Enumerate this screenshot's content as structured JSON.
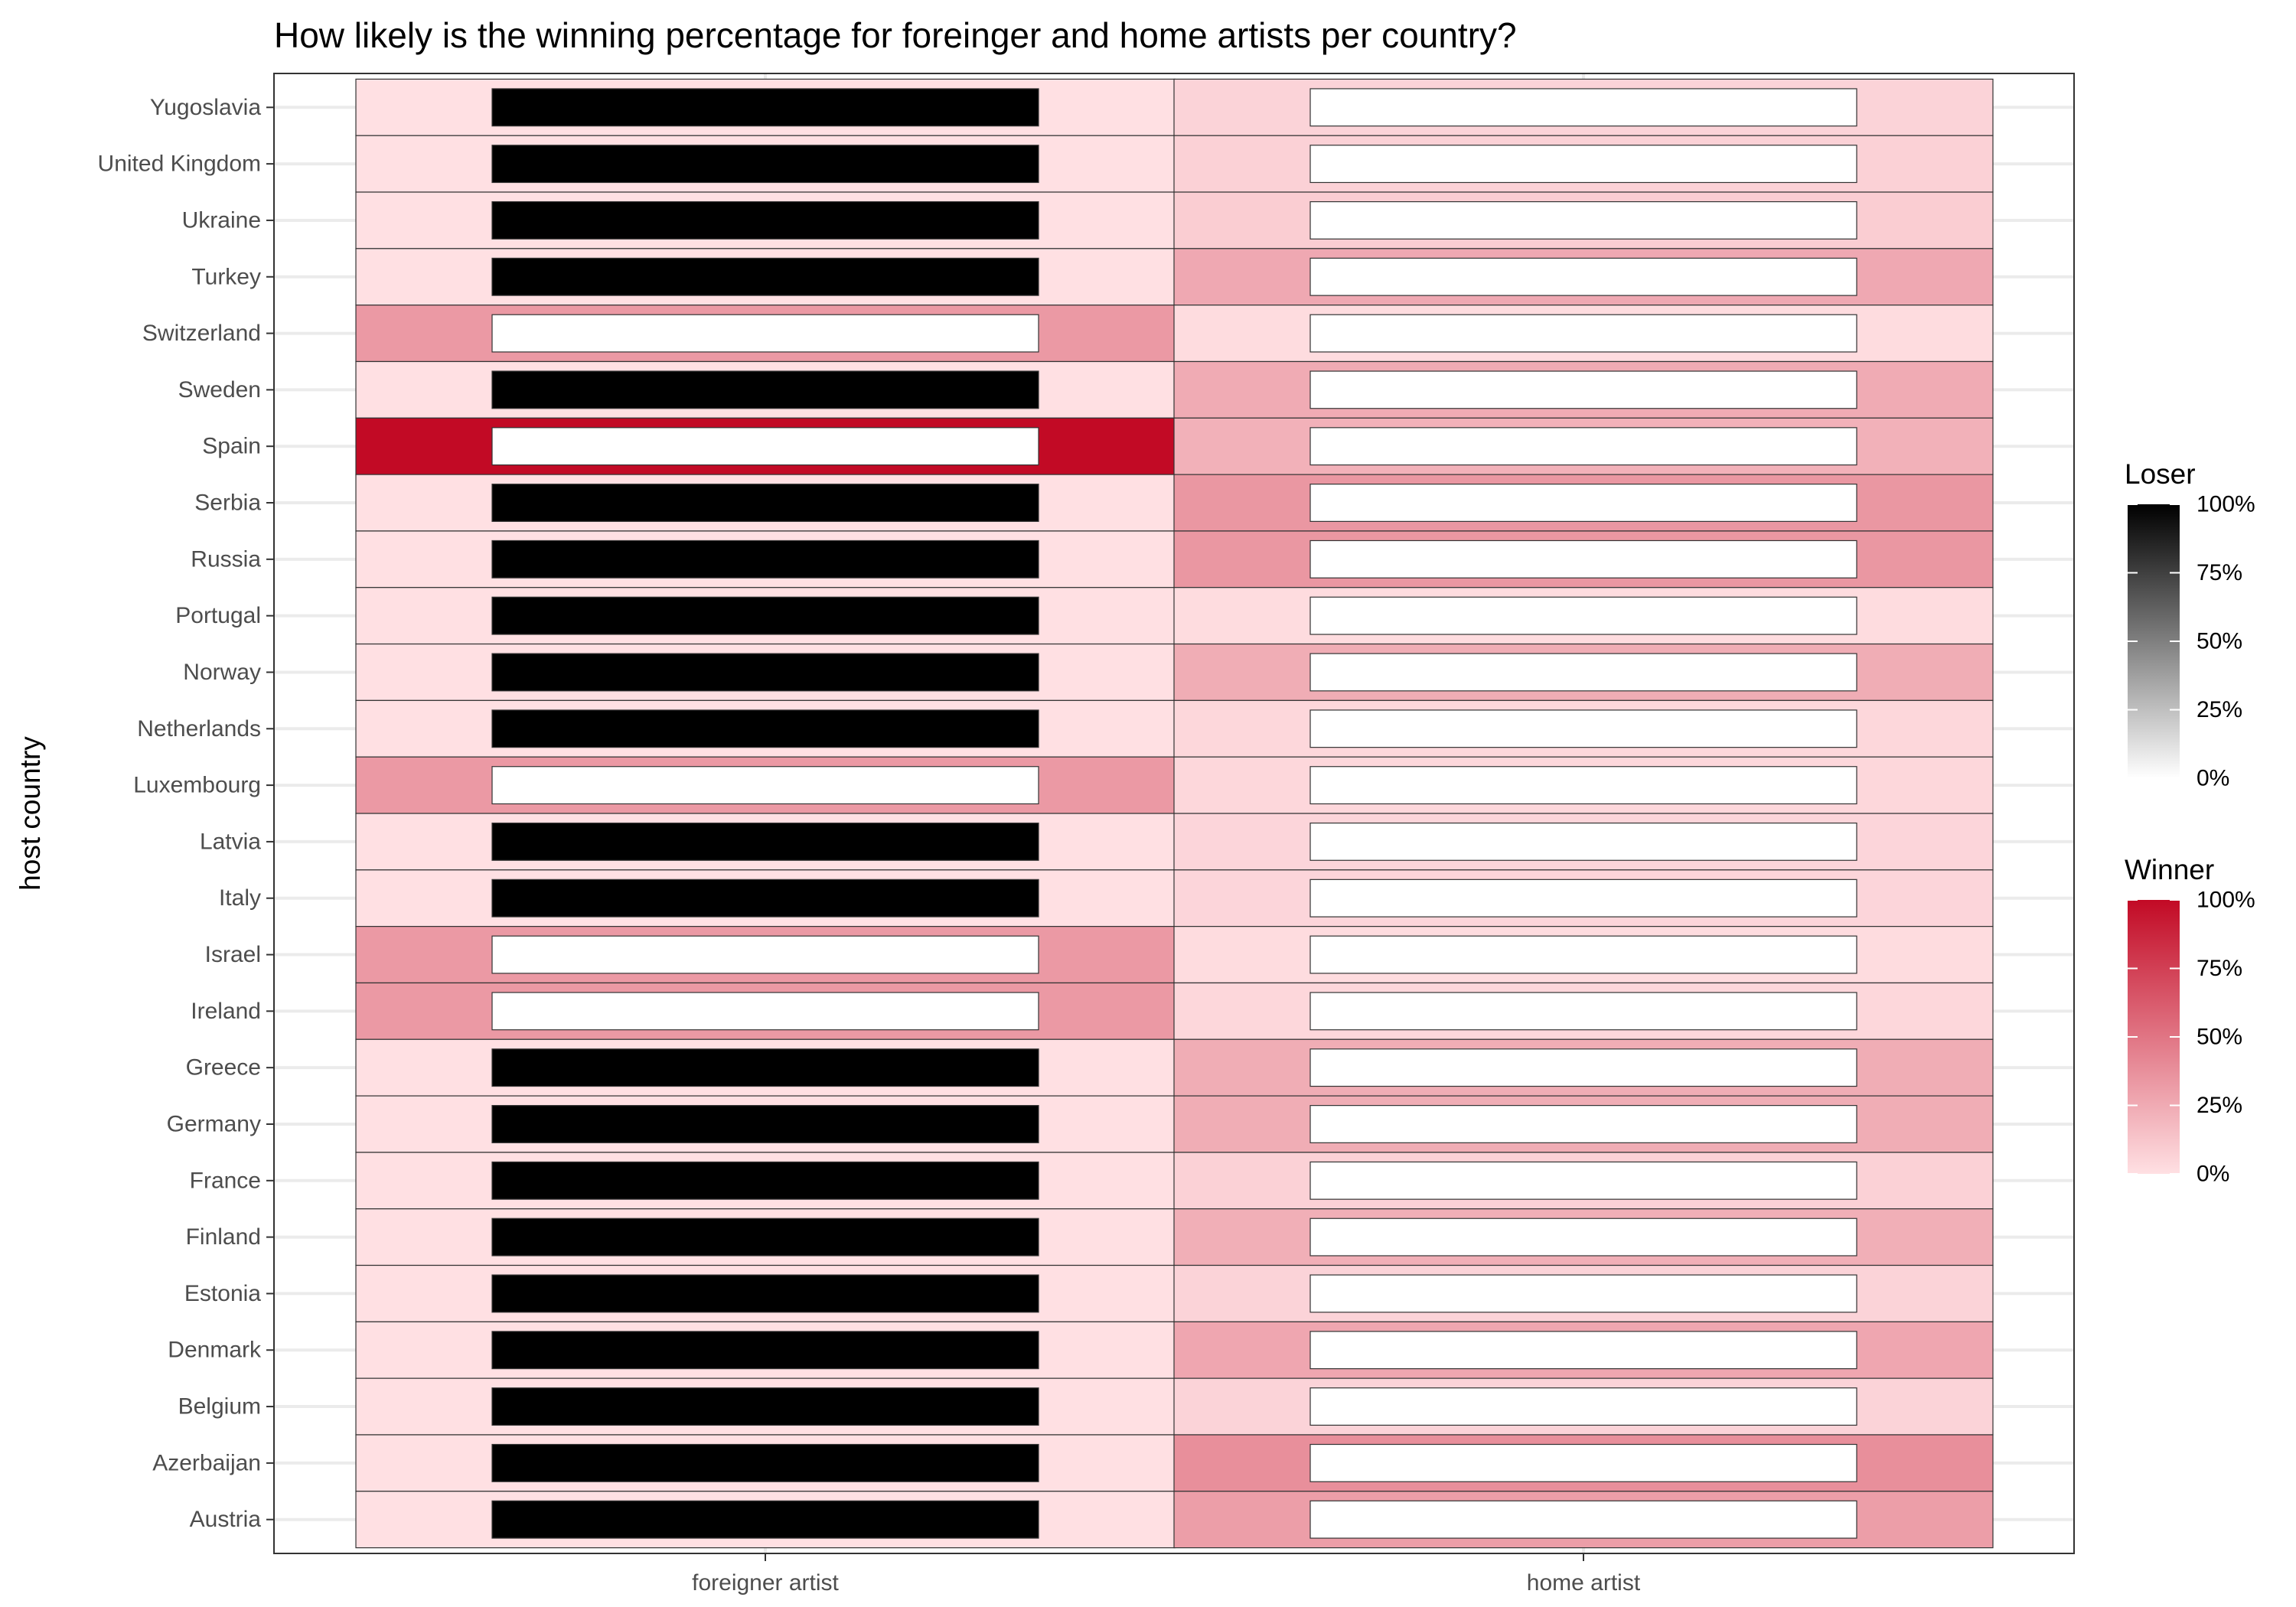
{
  "chart_data": {
    "type": "heatmap",
    "title": "How likely is the winning percentage for foreinger and home artists per country?",
    "xlabel": "",
    "ylabel": "host country",
    "x_categories": [
      "foreigner artist",
      "home artist"
    ],
    "y_categories": [
      "Yugoslavia",
      "United Kingdom",
      "Ukraine",
      "Turkey",
      "Switzerland",
      "Sweden",
      "Spain",
      "Serbia",
      "Russia",
      "Portugal",
      "Norway",
      "Netherlands",
      "Luxembourg",
      "Latvia",
      "Italy",
      "Israel",
      "Ireland",
      "Greece",
      "Germany",
      "France",
      "Finland",
      "Estonia",
      "Denmark",
      "Belgium",
      "Azerbaijan",
      "Austria"
    ],
    "winner_pct": {
      "foreigner artist": [
        0,
        0,
        0,
        0,
        33,
        0,
        100,
        0,
        0,
        0,
        0,
        0,
        33,
        0,
        0,
        33,
        33,
        0,
        0,
        0,
        0,
        0,
        0,
        0,
        0,
        0
      ],
      "home artist": [
        6,
        7,
        9,
        26,
        2,
        25,
        22,
        34,
        34,
        2,
        24,
        4,
        4,
        5,
        5,
        2,
        4,
        24,
        24,
        7,
        23,
        6,
        27,
        6,
        38,
        31
      ]
    },
    "loser_pct": {
      "foreigner artist": [
        100,
        100,
        100,
        100,
        0,
        100,
        0,
        100,
        100,
        100,
        100,
        100,
        0,
        100,
        100,
        0,
        0,
        100,
        100,
        100,
        100,
        100,
        100,
        100,
        100,
        100
      ],
      "home artist": [
        0,
        0,
        0,
        0,
        0,
        0,
        0,
        0,
        0,
        0,
        0,
        0,
        0,
        0,
        0,
        0,
        0,
        0,
        0,
        0,
        0,
        0,
        0,
        0,
        0,
        0
      ]
    },
    "legends": [
      {
        "title": "Loser",
        "labels": [
          "100%",
          "75%",
          "50%",
          "25%",
          "0%"
        ],
        "color_low": "#ffffff",
        "color_high": "#000000"
      },
      {
        "title": "Winner",
        "labels": [
          "100%",
          "75%",
          "50%",
          "25%",
          "0%"
        ],
        "color_low": "#ffe0e3",
        "color_high": "#c20a25"
      }
    ],
    "grid": true,
    "legend_position": "right"
  }
}
